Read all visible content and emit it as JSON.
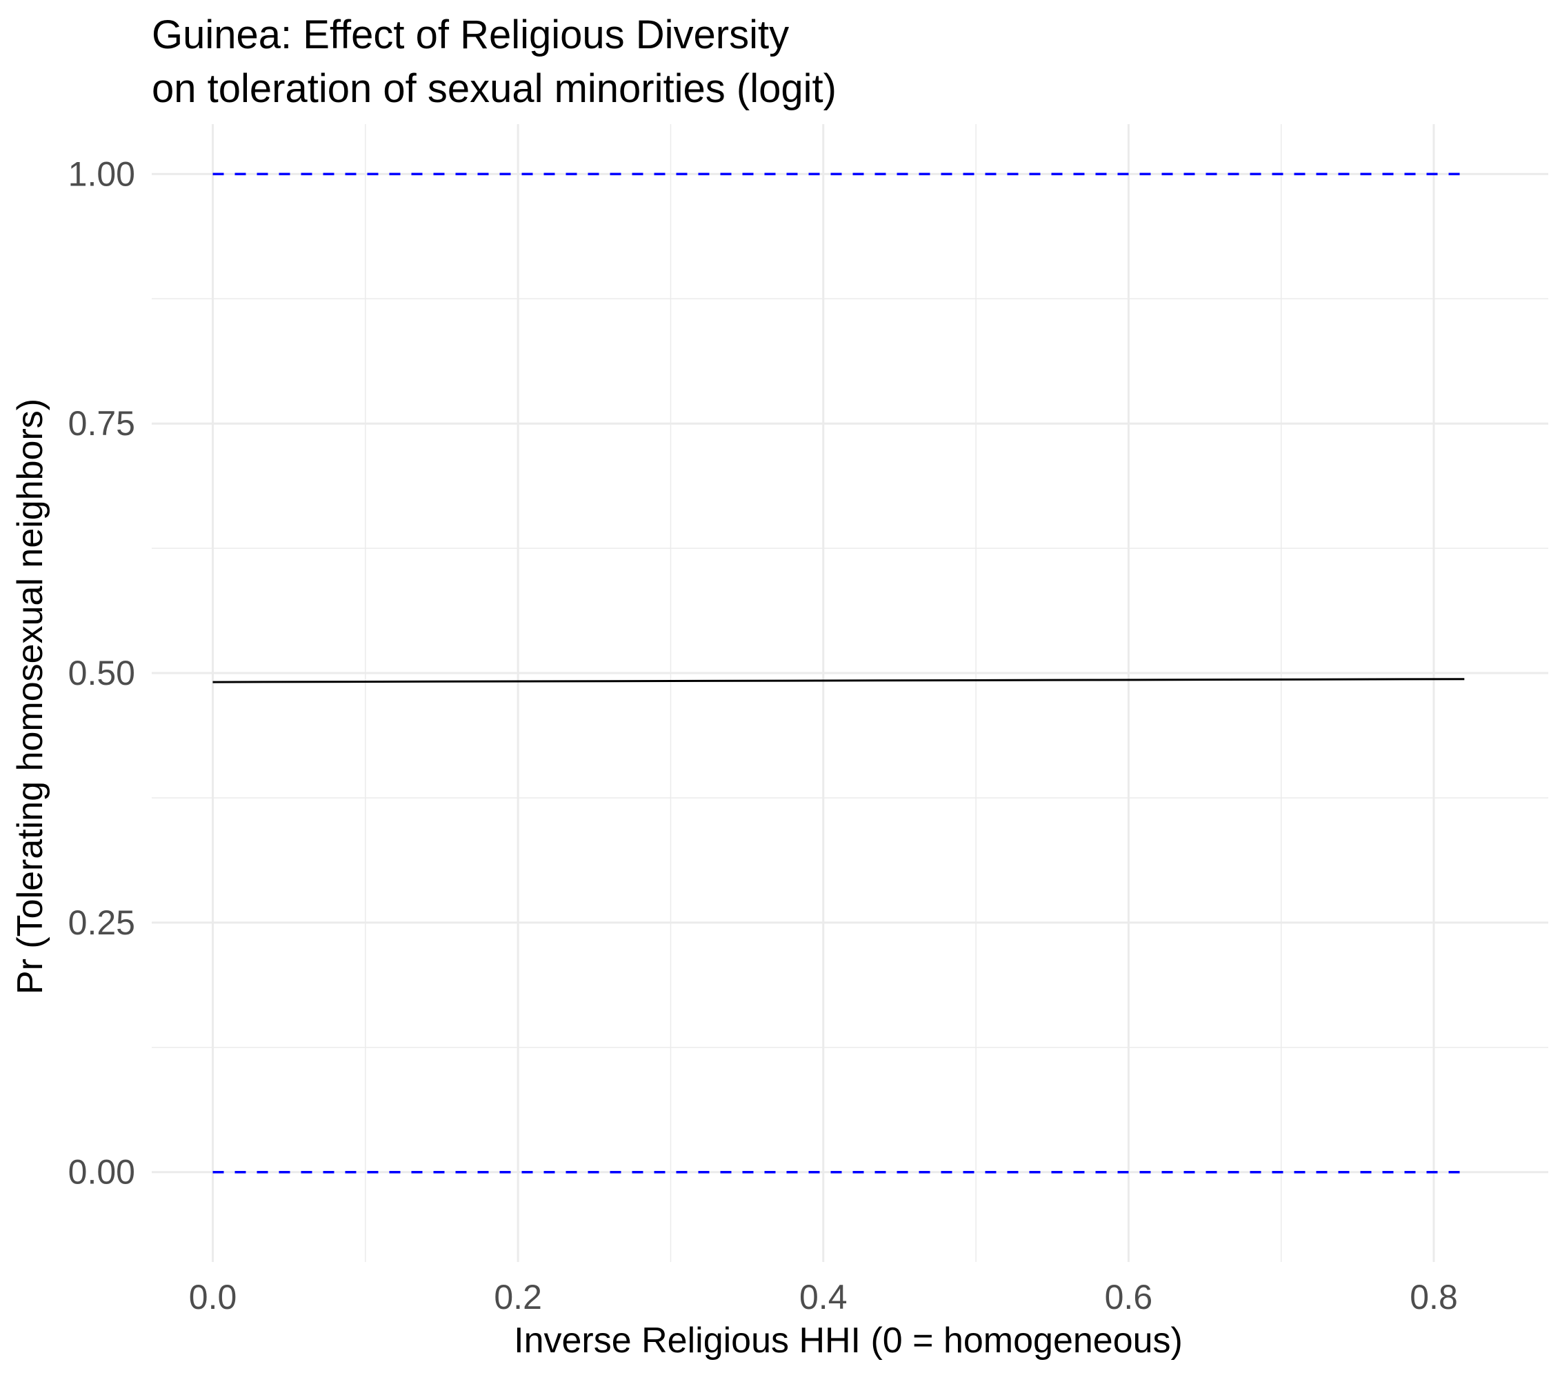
{
  "chart_data": {
    "type": "line",
    "title": "Guinea: Effect of Religious Diversity",
    "subtitle": "on toleration of sexual minorities (logit)",
    "xlabel": "Inverse Religious HHI (0 = homogeneous)",
    "ylabel": "Pr (Tolerating homosexual neighbors)",
    "xlim": [
      -0.04,
      0.875
    ],
    "ylim": [
      -0.09,
      1.05
    ],
    "x_ticks": [
      0.0,
      0.2,
      0.4,
      0.6,
      0.8
    ],
    "x_tick_labels": [
      "0.0",
      "0.2",
      "0.4",
      "0.6",
      "0.8"
    ],
    "y_ticks": [
      0.0,
      0.25,
      0.5,
      0.75,
      1.0
    ],
    "y_tick_labels": [
      "0.00",
      "0.25",
      "0.50",
      "0.75",
      "1.00"
    ],
    "grid": true,
    "legend": "none",
    "series": [
      {
        "style": "solid",
        "color": "#000000",
        "x": [
          0.0,
          0.82
        ],
        "y": [
          0.491,
          0.494
        ]
      },
      {
        "style": "dashed",
        "color": "#0000ff",
        "x": [
          0.0,
          0.82
        ],
        "y": [
          1.0,
          1.0
        ]
      },
      {
        "style": "dashed",
        "color": "#0000ff",
        "x": [
          0.0,
          0.82
        ],
        "y": [
          0.0,
          0.0
        ]
      }
    ],
    "colors": {
      "grid": "#ebebeb",
      "tick_text": "#4d4d4d"
    }
  }
}
